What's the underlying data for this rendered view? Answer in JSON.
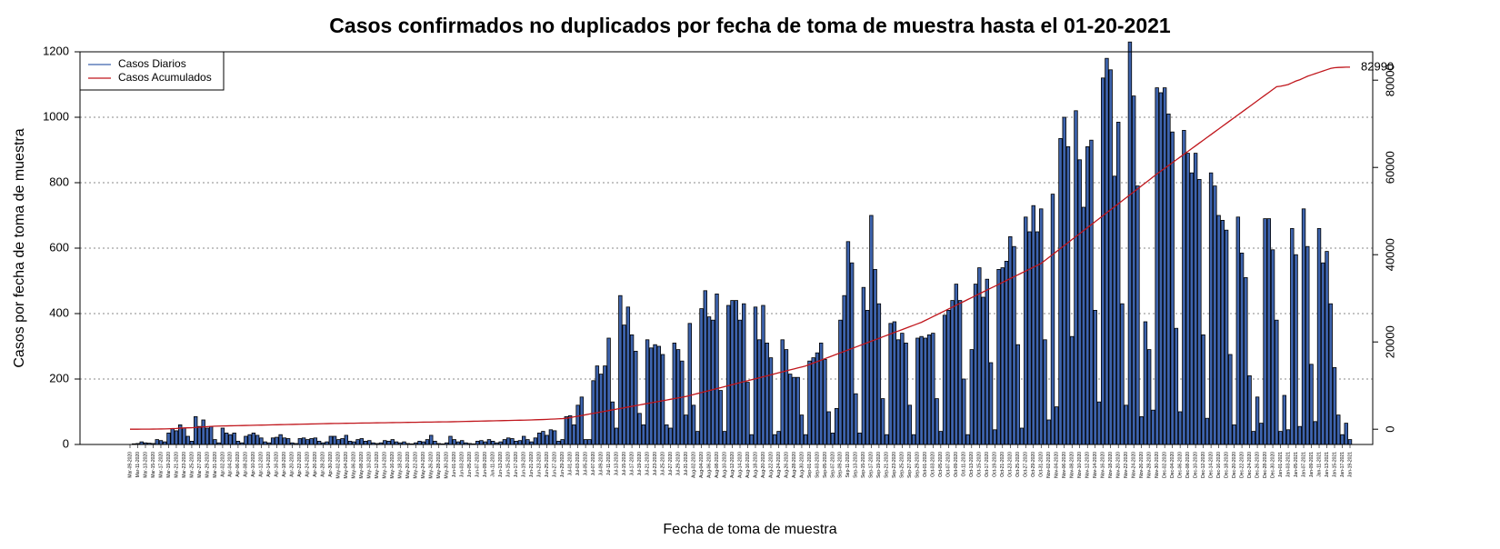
{
  "chart_data": {
    "type": "bar",
    "title": "Casos confirmados no duplicados por fecha de toma de muestra hasta el 01-20-2021",
    "x_label": "Fecha de toma de muestra",
    "y_label": "Casos por fecha de toma de muestra",
    "legend": "top-left",
    "grid": true,
    "ylim": [
      0,
      1200
    ],
    "yticks": [
      0,
      200,
      400,
      600,
      800,
      1000,
      1200
    ],
    "y2lim": [
      -3500,
      86500
    ],
    "y2ticks": [
      0,
      20000,
      40000,
      60000,
      80000
    ],
    "categories": [
      "Mar-09-2020",
      null,
      "Mar-11-2020",
      null,
      "Mar-13-2020",
      null,
      "Mar-15-2020",
      null,
      "Mar-17-2020",
      null,
      "Mar-19-2020",
      null,
      "Mar-21-2020",
      null,
      "Mar-23-2020",
      null,
      "Mar-25-2020",
      null,
      "Mar-27-2020",
      null,
      "Mar-29-2020",
      null,
      "Mar-31-2020",
      null,
      "Apr-02-2020",
      null,
      "Apr-04-2020",
      null,
      "Apr-06-2020",
      null,
      "Apr-08-2020",
      null,
      "Apr-10-2020",
      null,
      "Apr-12-2020",
      null,
      "Apr-14-2020",
      null,
      "Apr-16-2020",
      null,
      "Apr-18-2020",
      null,
      "Apr-20-2020",
      null,
      "Apr-22-2020",
      null,
      "Apr-24-2020",
      null,
      "Apr-26-2020",
      null,
      "Apr-28-2020",
      null,
      "Apr-30-2020",
      null,
      "May-02-2020",
      null,
      "May-04-2020",
      null,
      "May-06-2020",
      null,
      "May-08-2020",
      null,
      "May-10-2020",
      null,
      "May-12-2020",
      null,
      "May-14-2020",
      null,
      "May-16-2020",
      null,
      "May-18-2020",
      null,
      "May-20-2020",
      null,
      "May-22-2020",
      null,
      "May-24-2020",
      null,
      "May-26-2020",
      null,
      "May-28-2020",
      null,
      "May-30-2020",
      null,
      "Jun-01-2020",
      null,
      "Jun-03-2020",
      null,
      "Jun-05-2020",
      null,
      "Jun-07-2020",
      null,
      "Jun-09-2020",
      null,
      "Jun-11-2020",
      null,
      "Jun-13-2020",
      null,
      "Jun-15-2020",
      null,
      "Jun-17-2020",
      null,
      "Jun-19-2020",
      null,
      "Jun-21-2020",
      null,
      "Jun-23-2020",
      null,
      "Jun-25-2020",
      null,
      "Jun-27-2020",
      null,
      "Jun-29-2020",
      null,
      "Jul-01-2020",
      null,
      "Jul-03-2020",
      null,
      "Jul-05-2020",
      null,
      "Jul-07-2020",
      null,
      "Jul-09-2020",
      null,
      "Jul-11-2020",
      null,
      "Jul-13-2020",
      null,
      "Jul-15-2020",
      null,
      "Jul-17-2020",
      null,
      "Jul-19-2020",
      null,
      "Jul-21-2020",
      null,
      "Jul-23-2020",
      null,
      "Jul-25-2020",
      null,
      "Jul-27-2020",
      null,
      "Jul-29-2020",
      null,
      "Jul-31-2020",
      null,
      "Aug-02-2020",
      null,
      "Aug-04-2020",
      null,
      "Aug-06-2020",
      null,
      "Aug-08-2020",
      null,
      "Aug-10-2020",
      null,
      "Aug-12-2020",
      null,
      "Aug-14-2020",
      null,
      "Aug-16-2020",
      null,
      "Aug-18-2020",
      null,
      "Aug-20-2020",
      null,
      "Aug-22-2020",
      null,
      "Aug-24-2020",
      null,
      "Aug-26-2020",
      null,
      "Aug-28-2020",
      null,
      "Aug-30-2020",
      null,
      "Sep-01-2020",
      null,
      "Sep-03-2020",
      null,
      "Sep-05-2020",
      null,
      "Sep-07-2020",
      null,
      "Sep-09-2020",
      null,
      "Sep-11-2020",
      null,
      "Sep-13-2020",
      null,
      "Sep-15-2020",
      null,
      "Sep-17-2020",
      null,
      "Sep-19-2020",
      null,
      "Sep-21-2020",
      null,
      "Sep-23-2020",
      null,
      "Sep-25-2020",
      null,
      "Sep-27-2020",
      null,
      "Sep-29-2020",
      null,
      "Oct-01-2020",
      null,
      "Oct-03-2020",
      null,
      "Oct-05-2020",
      null,
      "Oct-07-2020",
      null,
      "Oct-09-2020",
      null,
      "Oct-11-2020",
      null,
      "Oct-13-2020",
      null,
      "Oct-15-2020",
      null,
      "Oct-17-2020",
      null,
      "Oct-19-2020",
      null,
      "Oct-21-2020",
      null,
      "Oct-23-2020",
      null,
      "Oct-25-2020",
      null,
      "Oct-27-2020",
      null,
      "Oct-29-2020",
      null,
      "Oct-31-2020",
      null,
      "Nov-02-2020",
      null,
      "Nov-04-2020",
      null,
      "Nov-06-2020",
      null,
      "Nov-08-2020",
      null,
      "Nov-10-2020",
      null,
      "Nov-12-2020",
      null,
      "Nov-14-2020",
      null,
      "Nov-16-2020",
      null,
      "Nov-18-2020",
      null,
      "Nov-20-2020",
      null,
      "Nov-22-2020",
      null,
      "Nov-24-2020",
      null,
      "Nov-26-2020",
      null,
      "Nov-28-2020",
      null,
      "Nov-30-2020",
      null,
      "Dec-02-2020",
      null,
      "Dec-04-2020",
      null,
      "Dec-06-2020",
      null,
      "Dec-08-2020",
      null,
      "Dec-10-2020",
      null,
      "Dec-12-2020",
      null,
      "Dec-14-2020",
      null,
      "Dec-16-2020",
      null,
      "Dec-18-2020",
      null,
      "Dec-20-2020",
      null,
      "Dec-22-2020",
      null,
      "Dec-24-2020",
      null,
      "Dec-26-2020",
      null,
      "Dec-28-2020",
      null,
      "Dec-30-2020",
      null,
      "Jan-01-2021",
      null,
      "Jan-03-2021",
      null,
      "Jan-05-2021",
      null,
      "Jan-07-2021",
      null,
      "Jan-09-2021",
      null,
      "Jan-11-2021",
      null,
      "Jan-13-2021",
      null,
      "Jan-15-2021",
      null,
      "Jan-17-2021",
      null,
      "Jan-19-2021"
    ],
    "series": [
      {
        "name": "Casos Diarios",
        "type": "bar",
        "color": "#3d63ad",
        "values": [
          0,
          2,
          3,
          8,
          5,
          4,
          3,
          15,
          12,
          8,
          35,
          48,
          42,
          60,
          50,
          25,
          10,
          85,
          55,
          75,
          50,
          55,
          15,
          5,
          50,
          35,
          30,
          35,
          10,
          5,
          25,
          30,
          35,
          28,
          20,
          8,
          5,
          20,
          22,
          30,
          20,
          18,
          5,
          3,
          18,
          20,
          15,
          18,
          20,
          10,
          5,
          8,
          25,
          25,
          15,
          18,
          28,
          10,
          8,
          15,
          18,
          10,
          12,
          5,
          3,
          5,
          12,
          10,
          15,
          8,
          5,
          8,
          3,
          2,
          5,
          10,
          8,
          15,
          28,
          10,
          3,
          2,
          5,
          25,
          15,
          8,
          12,
          5,
          3,
          2,
          10,
          12,
          8,
          15,
          10,
          5,
          8,
          15,
          20,
          18,
          10,
          12,
          25,
          15,
          8,
          20,
          35,
          40,
          28,
          45,
          42,
          10,
          15,
          85,
          88,
          60,
          120,
          145,
          15,
          15,
          195,
          240,
          215,
          240,
          325,
          130,
          50,
          455,
          365,
          420,
          335,
          285,
          95,
          60,
          320,
          295,
          305,
          300,
          275,
          60,
          50,
          310,
          290,
          255,
          90,
          370,
          120,
          40,
          415,
          470,
          390,
          380,
          460,
          165,
          40,
          425,
          440,
          440,
          380,
          430,
          190,
          30,
          420,
          320,
          425,
          310,
          265,
          30,
          40,
          320,
          290,
          215,
          205,
          205,
          90,
          30,
          255,
          265,
          280,
          310,
          260,
          100,
          35,
          110,
          380,
          455,
          620,
          555,
          155,
          35,
          480,
          410,
          700,
          535,
          430,
          140,
          30,
          370,
          375,
          320,
          340,
          310,
          120,
          30,
          325,
          330,
          325,
          335,
          340,
          140,
          40,
          395,
          410,
          440,
          490,
          440,
          200,
          30,
          290,
          490,
          540,
          450,
          505,
          250,
          45,
          535,
          540,
          560,
          635,
          605,
          305,
          50,
          695,
          650,
          730,
          650,
          720,
          320,
          75,
          765,
          115,
          935,
          1000,
          910,
          330,
          1020,
          870,
          725,
          910,
          930,
          410,
          130,
          1120,
          1180,
          1145,
          820,
          985,
          430,
          120,
          1230,
          1065,
          790,
          85,
          375,
          290,
          105,
          1090,
          1075,
          1090,
          1010,
          955,
          355,
          100,
          960,
          890,
          830,
          890,
          810,
          335,
          80,
          830,
          790,
          700,
          685,
          655,
          275,
          60,
          695,
          585,
          510,
          210,
          40,
          145,
          65,
          690,
          690,
          595,
          380,
          40,
          150,
          45,
          660,
          580,
          55,
          720,
          605,
          245,
          70,
          660,
          555,
          590,
          430,
          235,
          90,
          30,
          65,
          15
        ]
      },
      {
        "name": "Casos Acumulados",
        "type": "line",
        "axis": "y2",
        "color": "#c0161c",
        "values": [
          0,
          0,
          5,
          10,
          15,
          20,
          25,
          40,
          50,
          60,
          95,
          140,
          180,
          240,
          290,
          315,
          325,
          410,
          465,
          540,
          590,
          645,
          700,
          720,
          740,
          760,
          780,
          800,
          820,
          840,
          860,
          880,
          900,
          920,
          940,
          960,
          980,
          1000,
          1020,
          1040,
          1060,
          1080,
          1100,
          1120,
          1140,
          1160,
          1180,
          1200,
          1220,
          1240,
          1260,
          1280,
          1300,
          1313,
          1326,
          1339,
          1352,
          1365,
          1378,
          1391,
          1404,
          1417,
          1430,
          1443,
          1456,
          1469,
          1482,
          1495,
          1508,
          1521,
          1534,
          1547,
          1560,
          1573,
          1586,
          1599,
          1612,
          1625,
          1638,
          1651,
          1664,
          1677,
          1690,
          1700,
          1720,
          1740,
          1760,
          1780,
          1800,
          1820,
          1840,
          1860,
          1880,
          1900,
          1920,
          1940,
          1960,
          1980,
          2000,
          2020,
          2040,
          2060,
          2080,
          2100,
          2130,
          2160,
          2190,
          2220,
          2260,
          2300,
          2340,
          2380,
          2420,
          2500,
          2660,
          2820,
          2980,
          3140,
          3310,
          3470,
          3630,
          3790,
          3950,
          4110,
          4270,
          4430,
          4600,
          4760,
          4920,
          5080,
          5240,
          5400,
          5560,
          5730,
          5890,
          6050,
          6210,
          6370,
          6530,
          6690,
          6850,
          7020,
          7180,
          7340,
          7500,
          7730,
          7950,
          8180,
          8400,
          8630,
          8850,
          9080,
          9310,
          9530,
          9760,
          9980,
          10210,
          10440,
          10660,
          10890,
          11110,
          11340,
          11560,
          11790,
          12020,
          12240,
          12470,
          12690,
          12920,
          13150,
          13370,
          13600,
          13820,
          14050,
          14270,
          14500,
          14830,
          15170,
          15500,
          15830,
          16170,
          16500,
          16830,
          17170,
          17500,
          17830,
          18170,
          18500,
          18830,
          19170,
          19500,
          19830,
          20170,
          20500,
          20830,
          21170,
          21500,
          21830,
          22170,
          22500,
          22830,
          23170,
          23500,
          23830,
          24170,
          24500,
          24940,
          25370,
          25810,
          26240,
          26680,
          27110,
          27550,
          27980,
          28420,
          28850,
          29290,
          29730,
          30160,
          30600,
          31030,
          31470,
          31900,
          32340,
          32770,
          33210,
          33650,
          34080,
          34520,
          34950,
          35390,
          35820,
          36260,
          36690,
          37130,
          37560,
          38000,
          38680,
          39370,
          40050,
          40730,
          41420,
          42100,
          42780,
          43470,
          44150,
          44830,
          45520,
          46200,
          46880,
          47570,
          48250,
          48930,
          49620,
          50300,
          50980,
          51670,
          52350,
          53030,
          53720,
          54400,
          55080,
          55770,
          56450,
          57130,
          57820,
          58500,
          59150,
          59790,
          60440,
          61080,
          61730,
          62370,
          63020,
          63660,
          64310,
          64950,
          65600,
          66240,
          66890,
          67530,
          68180,
          68820,
          69470,
          70110,
          70760,
          71400,
          72050,
          72690,
          73340,
          73980,
          74630,
          75270,
          75920,
          76560,
          77210,
          77850,
          78500,
          78600,
          78800,
          79000,
          79400,
          79800,
          80100,
          80500,
          80900,
          81200,
          81500,
          81800,
          82100,
          82400,
          82700,
          82850,
          82920,
          82950,
          82980,
          82990
        ]
      }
    ]
  }
}
